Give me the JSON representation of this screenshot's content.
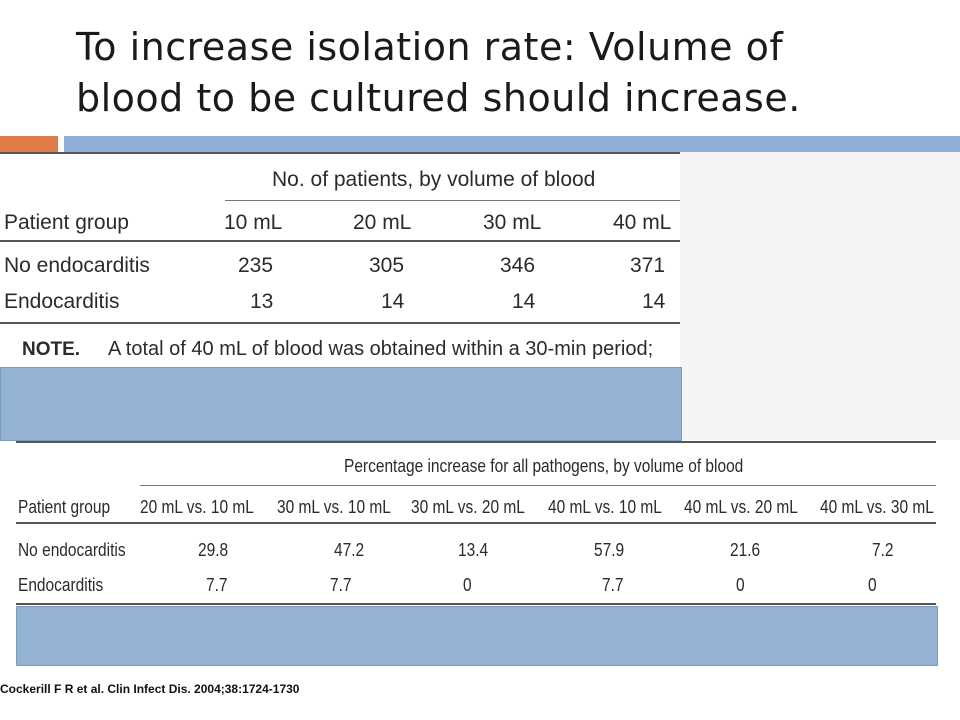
{
  "slide": {
    "title_line1": "To increase isolation rate: Volume of",
    "title_line2": "blood to be cultured should increase.",
    "citation": "Cockerill F R et al. Clin Infect Dis. 2004;38:1724-1730"
  },
  "table1": {
    "spanner": "No. of patients, by volume of blood",
    "col_header": "Patient group",
    "columns": [
      "10 mL",
      "20 mL",
      "30 mL",
      "40 mL"
    ],
    "rows": [
      {
        "group": "No endocarditis",
        "values": [
          "235",
          "305",
          "346",
          "371"
        ]
      },
      {
        "group": "Endocarditis",
        "values": [
          "13",
          "14",
          "14",
          "14"
        ]
      }
    ],
    "note_label": "NOTE.",
    "note_text": "A total of 40 mL of blood was obtained within a 30-min period;"
  },
  "table2": {
    "spanner": "Percentage increase for all pathogens, by volume of blood",
    "col_header": "Patient group",
    "columns": [
      "20 mL vs. 10 mL",
      "30 mL vs. 10 mL",
      "30 mL vs. 20 mL",
      "40 mL vs. 10 mL",
      "40 mL vs. 20 mL",
      "40 mL vs. 30 mL"
    ],
    "rows": [
      {
        "group": "No endocarditis",
        "values": [
          "29.8",
          "47.2",
          "13.4",
          "57.9",
          "21.6",
          "7.2"
        ]
      },
      {
        "group": "Endocarditis",
        "values": [
          "7.7",
          "7.7",
          "0",
          "7.7",
          "0",
          "0"
        ]
      }
    ]
  },
  "colors": {
    "accent_orange": "#e07b47",
    "accent_blue": "#8fb0d4",
    "band_blue": "#93b2d4"
  }
}
